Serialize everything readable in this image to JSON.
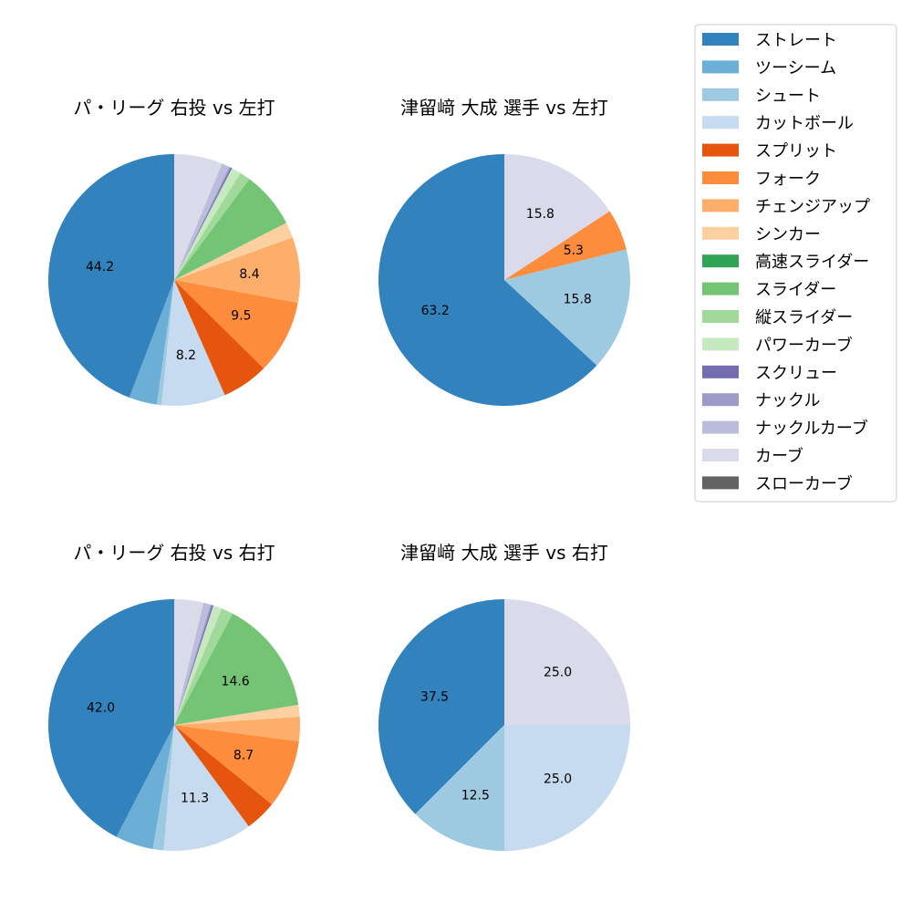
{
  "legend": {
    "items": [
      {
        "label": "ストレート",
        "color": "#3182bd"
      },
      {
        "label": "ツーシーム",
        "color": "#6baed6"
      },
      {
        "label": "シュート",
        "color": "#9ecae1"
      },
      {
        "label": "カットボール",
        "color": "#c6dbef"
      },
      {
        "label": "スプリット",
        "color": "#e6550d"
      },
      {
        "label": "フォーク",
        "color": "#fd8d3c"
      },
      {
        "label": "チェンジアップ",
        "color": "#fdae6b"
      },
      {
        "label": "シンカー",
        "color": "#fdd0a2"
      },
      {
        "label": "高速スライダー",
        "color": "#31a354"
      },
      {
        "label": "スライダー",
        "color": "#74c476"
      },
      {
        "label": "縦スライダー",
        "color": "#a1d99b"
      },
      {
        "label": "パワーカーブ",
        "color": "#c7e9c0"
      },
      {
        "label": "スクリュー",
        "color": "#756bb1"
      },
      {
        "label": "ナックル",
        "color": "#9e9ac8"
      },
      {
        "label": "ナックルカーブ",
        "color": "#bcbddc"
      },
      {
        "label": "カーブ",
        "color": "#dadaeb"
      },
      {
        "label": "スローカーブ",
        "color": "#636363"
      }
    ]
  },
  "chart_data": [
    {
      "type": "pie",
      "title": "パ・リーグ 右投 vs 左打",
      "slices": [
        {
          "category": "ストレート",
          "value": 44.2,
          "label": "44.2"
        },
        {
          "category": "ツーシーム",
          "value": 3.6,
          "label": ""
        },
        {
          "category": "シュート",
          "value": 0.6,
          "label": ""
        },
        {
          "category": "カットボール",
          "value": 8.2,
          "label": "8.2"
        },
        {
          "category": "スプリット",
          "value": 6.0,
          "label": ""
        },
        {
          "category": "フォーク",
          "value": 9.5,
          "label": "9.5"
        },
        {
          "category": "チェンジアップ",
          "value": 8.4,
          "label": "8.4"
        },
        {
          "category": "シンカー",
          "value": 2.0,
          "label": ""
        },
        {
          "category": "スライダー",
          "value": 7.3,
          "label": ""
        },
        {
          "category": "縦スライダー",
          "value": 1.4,
          "label": ""
        },
        {
          "category": "パワーカーブ",
          "value": 1.2,
          "label": ""
        },
        {
          "category": "スクリュー",
          "value": 0.2,
          "label": ""
        },
        {
          "category": "ナックル",
          "value": 0.2,
          "label": ""
        },
        {
          "category": "ナックルカーブ",
          "value": 1.0,
          "label": ""
        },
        {
          "category": "カーブ",
          "value": 6.2,
          "label": ""
        }
      ]
    },
    {
      "type": "pie",
      "title": "津留﨑 大成 選手 vs 左打",
      "slices": [
        {
          "category": "ストレート",
          "value": 63.2,
          "label": "63.2"
        },
        {
          "category": "シュート",
          "value": 15.8,
          "label": "15.8"
        },
        {
          "category": "フォーク",
          "value": 5.3,
          "label": "5.3"
        },
        {
          "category": "カーブ",
          "value": 15.8,
          "label": "15.8"
        }
      ]
    },
    {
      "type": "pie",
      "title": "パ・リーグ 右投 vs 右打",
      "slices": [
        {
          "category": "ストレート",
          "value": 42.0,
          "label": "42.0"
        },
        {
          "category": "ツーシーム",
          "value": 4.8,
          "label": ""
        },
        {
          "category": "シュート",
          "value": 1.4,
          "label": ""
        },
        {
          "category": "カットボール",
          "value": 11.3,
          "label": "11.3"
        },
        {
          "category": "スプリット",
          "value": 4.0,
          "label": ""
        },
        {
          "category": "フォーク",
          "value": 8.7,
          "label": "8.7"
        },
        {
          "category": "チェンジアップ",
          "value": 3.1,
          "label": ""
        },
        {
          "category": "シンカー",
          "value": 1.5,
          "label": ""
        },
        {
          "category": "スライダー",
          "value": 14.6,
          "label": "14.6"
        },
        {
          "category": "縦スライダー",
          "value": 1.5,
          "label": ""
        },
        {
          "category": "パワーカーブ",
          "value": 1.1,
          "label": ""
        },
        {
          "category": "スクリュー",
          "value": 0.2,
          "label": ""
        },
        {
          "category": "ナックル",
          "value": 0.2,
          "label": ""
        },
        {
          "category": "ナックルカーブ",
          "value": 0.9,
          "label": ""
        },
        {
          "category": "カーブ",
          "value": 3.7,
          "label": ""
        }
      ]
    },
    {
      "type": "pie",
      "title": "津留﨑 大成 選手 vs 右打",
      "slices": [
        {
          "category": "ストレート",
          "value": 37.5,
          "label": "37.5"
        },
        {
          "category": "シュート",
          "value": 12.5,
          "label": "12.5"
        },
        {
          "category": "カットボール",
          "value": 25.0,
          "label": "25.0"
        },
        {
          "category": "カーブ",
          "value": 25.0,
          "label": "25.0"
        }
      ]
    }
  ]
}
